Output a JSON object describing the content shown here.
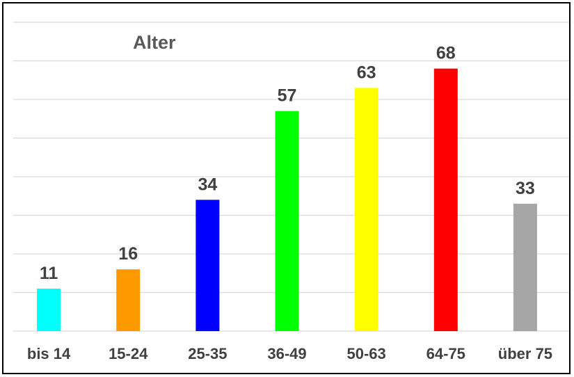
{
  "chart_data": {
    "type": "bar",
    "title": "Alter",
    "categories": [
      "bis 14",
      "15-24",
      "25-35",
      "36-49",
      "50-63",
      "64-75",
      "über 75"
    ],
    "values": [
      11,
      16,
      34,
      57,
      63,
      68,
      33
    ],
    "colors": [
      "#00ffff",
      "#ff9900",
      "#0000ff",
      "#00ff00",
      "#ffff00",
      "#ff0000",
      "#a6a6a6"
    ],
    "ylim": [
      0,
      80
    ],
    "grid": true,
    "show_y_axis_labels": false
  }
}
